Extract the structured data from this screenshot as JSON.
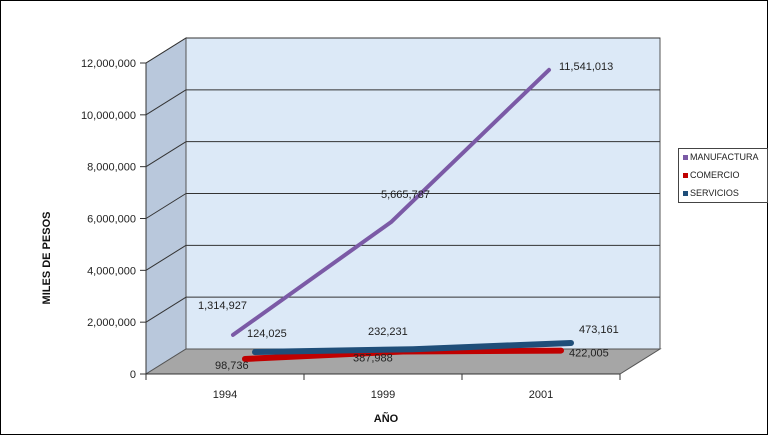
{
  "chart_data": {
    "type": "line",
    "categories": [
      "1994",
      "1999",
      "2001"
    ],
    "series": [
      {
        "name": "MANUFACTURA",
        "values": [
          1314927,
          5665787,
          11541013
        ],
        "labels": [
          "1,314,927",
          "5,665,787",
          "11,541,013"
        ],
        "color": "#7b5aa6"
      },
      {
        "name": "COMERCIO",
        "values": [
          98736,
          387988,
          422005
        ],
        "labels": [
          "98,736",
          "387,988",
          "422,005"
        ],
        "color": "#c00000"
      },
      {
        "name": "SERVICIOS",
        "values": [
          124025,
          232231,
          473161
        ],
        "labels": [
          "124,025",
          "232,231",
          "473,161"
        ],
        "color": "#1f4e79"
      }
    ],
    "xlabel": "AÑO",
    "ylabel": "MILES DE PESOS",
    "ylim": [
      0,
      12000000
    ],
    "yticks": [
      0,
      2000000,
      4000000,
      6000000,
      8000000,
      10000000,
      12000000
    ],
    "ytick_labels": [
      "0",
      "2,000,000",
      "4,000,000",
      "6,000,000",
      "8,000,000",
      "10,000,000",
      "12,000,000"
    ],
    "grid": true,
    "legend_position": "right",
    "style": "3d",
    "wall_color": "#dce9f7"
  }
}
